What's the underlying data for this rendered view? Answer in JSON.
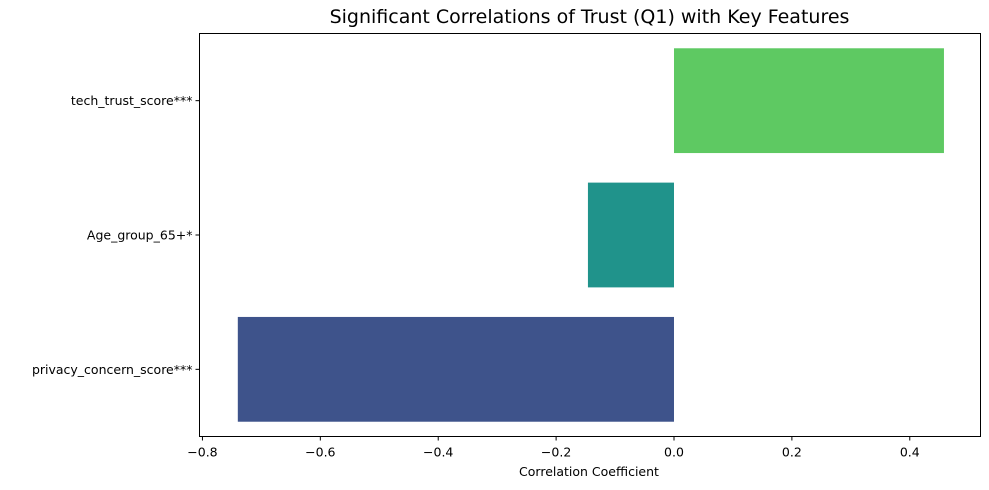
{
  "chart_data": {
    "type": "bar",
    "orientation": "horizontal",
    "title": "Significant Correlations of Trust (Q1) with Key Features",
    "xlabel": "Correlation Coefficient",
    "ylabel": "",
    "categories": [
      "privacy_concern_score***",
      "Age_group_65+*",
      "tech_trust_score***"
    ],
    "values": [
      -0.74,
      -0.146,
      0.458
    ],
    "colors": [
      "#3e538b",
      "#20938b",
      "#5ec962"
    ],
    "xlim": [
      -0.805,
      0.52
    ],
    "xticks": [
      -0.8,
      -0.6,
      -0.4,
      -0.2,
      0.0,
      0.2,
      0.4
    ],
    "xtick_labels": [
      "−0.8",
      "−0.6",
      "−0.4",
      "−0.2",
      "0.0",
      "0.2",
      "0.4"
    ],
    "grid": false,
    "legend": "none"
  }
}
